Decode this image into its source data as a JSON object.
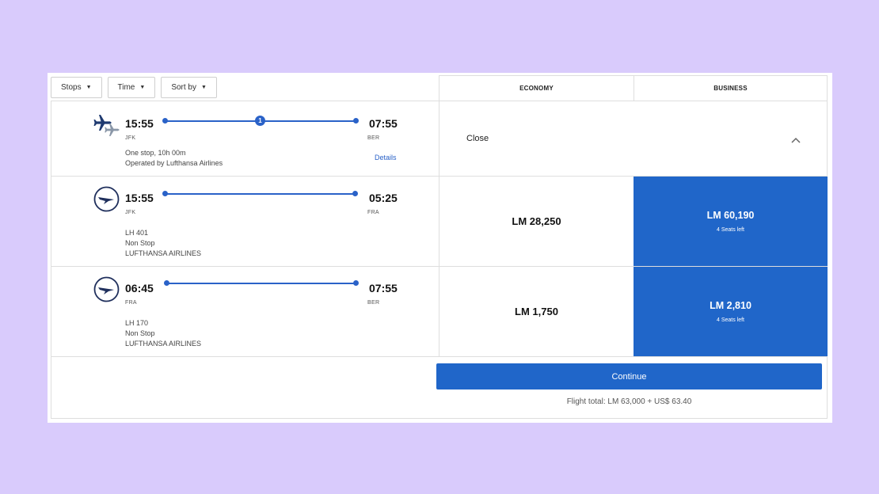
{
  "filters": {
    "stops_label": "Stops",
    "time_label": "Time",
    "sort_label": "Sort by"
  },
  "cabins": {
    "economy": "ECONOMY",
    "business": "BUSINESS"
  },
  "summary": {
    "depart_time": "15:55",
    "depart_code": "JFK",
    "arrive_time": "07:55",
    "arrive_code": "BER",
    "stops_badge": "1",
    "duration": "One stop, 10h 00m",
    "operator": "Operated by Lufthansa Airlines",
    "details_label": "Details",
    "close_label": "Close"
  },
  "segments": [
    {
      "depart_time": "15:55",
      "depart_code": "JFK",
      "arrive_time": "05:25",
      "arrive_code": "FRA",
      "flight_no": "LH 401",
      "stops": "Non Stop",
      "airline": "LUFTHANSA AIRLINES",
      "economy_price": "LM 28,250",
      "business_price": "LM 60,190",
      "business_seats": "4 Seats left"
    },
    {
      "depart_time": "06:45",
      "depart_code": "FRA",
      "arrive_time": "07:55",
      "arrive_code": "BER",
      "flight_no": "LH 170",
      "stops": "Non Stop",
      "airline": "LUFTHANSA AIRLINES",
      "economy_price": "LM 1,750",
      "business_price": "LM 2,810",
      "business_seats": "4 Seats left"
    }
  ],
  "footer": {
    "continue_label": "Continue",
    "total": "Flight total: LM 63,000 + US$ 63.40"
  },
  "colors": {
    "background": "#d9cbfc",
    "accent": "#2066c9"
  }
}
